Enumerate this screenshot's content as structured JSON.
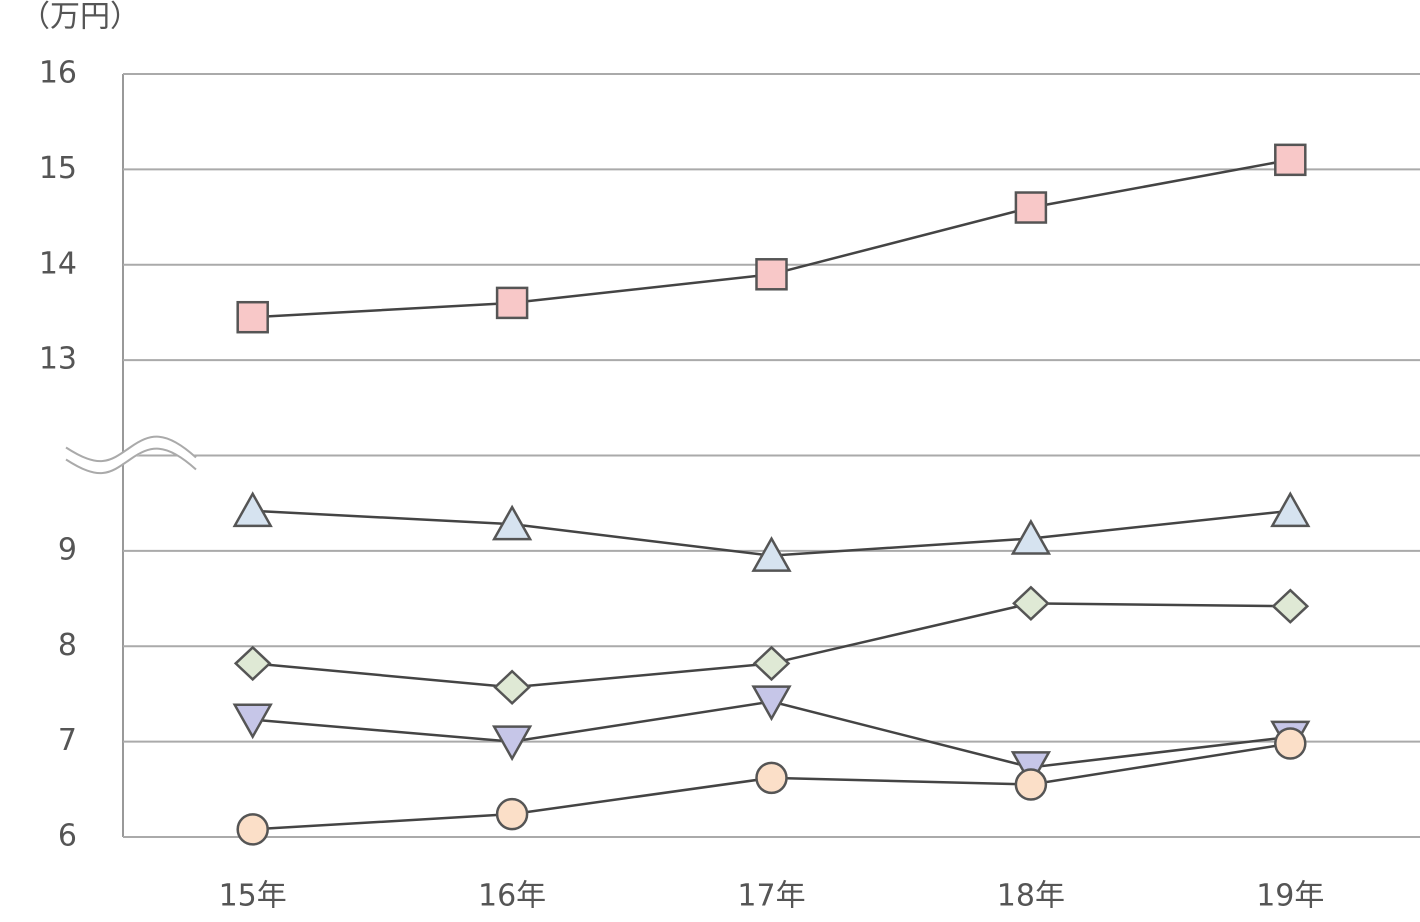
{
  "chart_data": {
    "type": "line",
    "y_unit": "（万円）",
    "categories": [
      "15年",
      "16年",
      "17年",
      "18年",
      "19年"
    ],
    "ylim": [
      6,
      16
    ],
    "ybreak": [
      10,
      13
    ],
    "yticks": [
      6,
      7,
      8,
      9,
      13,
      14,
      15,
      16
    ],
    "grid": true,
    "series": [
      {
        "color": "#f8c8c8",
        "marker": "square",
        "values": [
          13.45,
          13.6,
          13.9,
          14.6,
          15.1
        ]
      },
      {
        "color": "#d6e3f0",
        "marker": "triangle",
        "values": [
          9.42,
          9.28,
          8.95,
          9.13,
          9.42
        ]
      },
      {
        "color": "#dfe9d5",
        "marker": "diamond",
        "values": [
          7.82,
          7.57,
          7.82,
          8.45,
          8.42
        ]
      },
      {
        "color": "#c6c6e8",
        "marker": "triangle-down",
        "values": [
          7.23,
          7.0,
          7.42,
          6.73,
          7.05
        ]
      },
      {
        "color": "#fbdfc8",
        "marker": "circle",
        "values": [
          6.08,
          6.24,
          6.62,
          6.55,
          6.98
        ]
      }
    ]
  }
}
